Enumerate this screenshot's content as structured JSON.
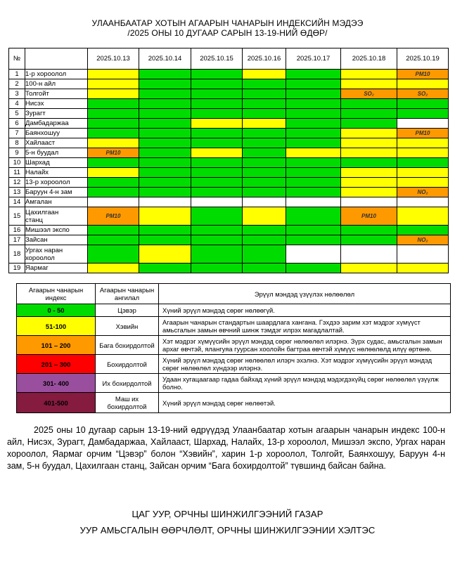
{
  "title": {
    "line1": "УЛААНБААТАР ХОТЫН АГААРЫН ЧАНАРЫН ИНДЕКСИЙН МЭДЭЭ",
    "line2": "/2025 ОНЫ 10 ДУГААР САРЫН 13-19-НИЙ ӨДӨР/"
  },
  "colors": {
    "green": "#00DC00",
    "yellow": "#FFFF00",
    "orange": "#FF9900",
    "red": "#FF0000",
    "purple": "#9A4F9E",
    "maroon": "#851B3F",
    "white": "#FFFFFF"
  },
  "aqi_table": {
    "no_header": "№",
    "name_header": "",
    "dates": [
      "2025.10.13",
      "2025.10.14",
      "2025.10.15",
      "2025.10.16",
      "2025.10.17",
      "2025.10.18",
      "2025.10.19"
    ],
    "rows": [
      {
        "no": "1",
        "name": "1-р хороолол",
        "cells": [
          "Y",
          "G",
          "G",
          "Y",
          "G",
          "Y",
          "O:PM10"
        ]
      },
      {
        "no": "2",
        "name": "100-н айл",
        "cells": [
          "Y",
          "G",
          "G",
          "G",
          "G",
          "Y",
          "Y"
        ]
      },
      {
        "no": "3",
        "name": "Толгойт",
        "cells": [
          "Y",
          "G",
          "G",
          "G",
          "G",
          "O:SO₂",
          "O:SO₂"
        ]
      },
      {
        "no": "4",
        "name": "Нисэх",
        "cells": [
          "G",
          "G",
          "G",
          "G",
          "G",
          "G",
          "G"
        ]
      },
      {
        "no": "5",
        "name": "Зурагт",
        "cells": [
          "G",
          "G",
          "G",
          "G",
          "G",
          "G",
          "G"
        ]
      },
      {
        "no": "6",
        "name": "Дамбадаржаа",
        "cells": [
          "G",
          "G",
          "Y",
          "Y",
          "G",
          "G",
          "W"
        ]
      },
      {
        "no": "7",
        "name": "Баянхошуу",
        "cells": [
          "G",
          "G",
          "G",
          "G",
          "G",
          "Y",
          "O:PM10"
        ]
      },
      {
        "no": "8",
        "name": "Хайлааст",
        "cells": [
          "Y",
          "G",
          "G",
          "G",
          "G",
          "Y",
          "Y"
        ]
      },
      {
        "no": "9",
        "name": "5-н буудал",
        "cells": [
          "O:PM10",
          "G",
          "Y",
          "G",
          "Y",
          "Y",
          "Y"
        ]
      },
      {
        "no": "10",
        "name": "Шархад",
        "cells": [
          "G",
          "G",
          "G",
          "G",
          "G",
          "G",
          "G"
        ]
      },
      {
        "no": "11",
        "name": "Налайх",
        "cells": [
          "Y",
          "G",
          "G",
          "G",
          "G",
          "Y",
          "Y"
        ]
      },
      {
        "no": "12",
        "name": "13-р хороолол",
        "cells": [
          "G",
          "G",
          "G",
          "G",
          "G",
          "Y",
          "Y"
        ]
      },
      {
        "no": "13",
        "name": "Баруун 4-н зам",
        "cells": [
          "G",
          "G",
          "G",
          "G",
          "G",
          "Y",
          "O:NO₂"
        ]
      },
      {
        "no": "14",
        "name": "Амгалан",
        "cells": [
          "W",
          "W",
          "W",
          "W",
          "W",
          "W",
          "W"
        ]
      },
      {
        "no": "15",
        "name": "Цахилгаан\nстанц",
        "tall": true,
        "cells": [
          "O:PM10",
          "Y",
          "G",
          "Y",
          "G",
          "O:PM10",
          "Y"
        ]
      },
      {
        "no": "16",
        "name": "Мишээл экспо",
        "cells": [
          "G",
          "G",
          "G",
          "G",
          "G",
          "G",
          "G"
        ]
      },
      {
        "no": "17",
        "name": "Зайсан",
        "cells": [
          "G",
          "G",
          "G",
          "G",
          "G",
          "G",
          "O:NO₂"
        ]
      },
      {
        "no": "18",
        "name": "Ургах наран\nхороолол",
        "tall": true,
        "cells": [
          "G",
          "Y",
          "G",
          "G",
          "W",
          "W",
          "W"
        ]
      },
      {
        "no": "19",
        "name": "Яармаг",
        "cells": [
          "Y",
          "G",
          "G",
          "G",
          "G",
          "Y",
          "Y"
        ]
      }
    ]
  },
  "legend_table": {
    "headers": [
      "Агаарын чанарын индекс",
      "Агаарын чанарын ангилал",
      "Эрүүл мэндэд үзүүлэх нөлөөлөл"
    ],
    "rows": [
      {
        "range": "0 - 50",
        "color_key": "green",
        "category": "Цэвэр",
        "effect": "Хүний эрүүл мэндэд сөрөг нөлөөгүй."
      },
      {
        "range": "51-100",
        "color_key": "yellow",
        "category": "Хэвийн",
        "effect": "Агаарын чанарын стандартын шаардлага хангана. Гэхдээ зарим хэт мэдрэг хүмүүст  амьсгалын замын өвчний шинж тэмдэг илрэх магадлалтай."
      },
      {
        "range": "101 – 200",
        "color_key": "orange",
        "category": "Бага бохирдолтой",
        "effect": "Хэт мэдрэг хүмүүсийн эрүүл мэндэд  сөрөг нөлөөлөл илэрнэ. Зүрх судас, амьсгалын замын архаг өвчтэй, ялангуяа гуурсан хоолойн багтраа өвчтэй хүмүүс нөлөөлөлд илүү өртөнө."
      },
      {
        "range": "201 – 300",
        "color_key": "red",
        "category": "Бохирдолтой",
        "effect": "Хүний эрүүл мэндэд сөрөг нөлөөлөл илэрч эхэлнэ. Хэт мэдрэг хүмүүсийн эрүүл мэндэд сөрөг нөлөөлөл хүндээр илэрнэ."
      },
      {
        "range": "301- 400",
        "color_key": "purple",
        "category": "Их бохирдолтой",
        "effect": "Удаан хугацаагаар гадаа байхад хүний эрүүл мэндэд мэдэгдэхүйц сөрөг нөлөөлөл үзүүлж болно."
      },
      {
        "range": "401-500",
        "color_key": "maroon",
        "category": "Маш их бохирдолтой",
        "effect": "Хүний эрүүл мэндэд сөрөг нөлөөтэй."
      }
    ]
  },
  "summary_paragraph": "2025 оны 10 дугаар сарын 13-19-ний өдрүүдэд Улаанбаатар хотын агаарын чанарын индекс 100-н айл, Нисэх, Зурагт, Дамбадаржаа, Хайлааст, Шархад, Налайх, 13-р хороолол, Мишээл экспо, Ургах наран хороолол, Яармаг орчим “Цэвэр” болон “Хэвийн”, харин 1-р хороолол, Толгойт, Баянхошуу, Баруун 4-н зам, 5-н буудал, Цахилгаан станц, Зайсан орчим “Бага бохирдолтой” түвшинд байсан байна.",
  "footer": {
    "line1": "ЦАГ УУР, ОРЧНЫ ШИНЖИЛГЭЭНИЙ ГАЗАР",
    "line2": "УУР АМЬСГАЛЫН ӨӨРЧЛӨЛТ, ОРЧНЫ ШИНЖИЛГЭЭНИИ ХЭЛТЭС"
  }
}
